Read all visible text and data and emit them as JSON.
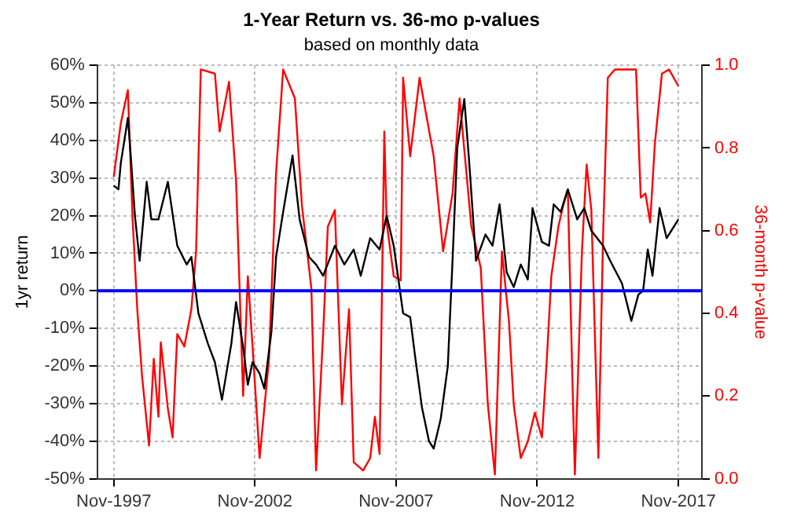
{
  "chart_data": {
    "type": "line",
    "title": "1-Year Return vs. 36-mo p-values",
    "subtitle": "based on monthly data",
    "ylabel": "1yr return",
    "y2label": "36-month p-value",
    "xlim": [
      "1997-04",
      "2018-09"
    ],
    "xticks": [
      {
        "value": "1997-11",
        "label": "Nov-1997"
      },
      {
        "value": "2002-11",
        "label": "Nov-2002"
      },
      {
        "value": "2007-11",
        "label": "Nov-2007"
      },
      {
        "value": "2012-11",
        "label": "Nov-2012"
      },
      {
        "value": "2017-11",
        "label": "Nov-2017"
      }
    ],
    "ylim": [
      -50,
      60
    ],
    "yticks": [
      {
        "value": -50,
        "label": "-50%"
      },
      {
        "value": -40,
        "label": "-40%"
      },
      {
        "value": -30,
        "label": "-30%"
      },
      {
        "value": -20,
        "label": "-20%"
      },
      {
        "value": -10,
        "label": "-10%"
      },
      {
        "value": 0,
        "label": "0%"
      },
      {
        "value": 10,
        "label": "10%"
      },
      {
        "value": 20,
        "label": "20%"
      },
      {
        "value": 30,
        "label": "30%"
      },
      {
        "value": 40,
        "label": "40%"
      },
      {
        "value": 50,
        "label": "50%"
      },
      {
        "value": 60,
        "label": "60%"
      }
    ],
    "y2lim": [
      0,
      1
    ],
    "y2ticks": [
      {
        "value": 0,
        "label": "0.0"
      },
      0.2,
      0.4,
      0.6,
      0.8,
      {
        "value": 1,
        "label": "1.0"
      }
    ],
    "grid": true,
    "legend": false,
    "marker": "none",
    "line_style": "solid",
    "ref_lines": [
      {
        "axis": "y",
        "value": 0,
        "label": null,
        "color": "#0000ff"
      }
    ],
    "series": [
      {
        "color": "#000000",
        "x": [
          "1997-11",
          "1998-01",
          "1998-02",
          "1998-05",
          "1998-06",
          "1998-08",
          "1998-10",
          "1999-01",
          "1999-03",
          "1999-06",
          "1999-10",
          "2000-02",
          "2000-06",
          "2000-08",
          "2000-11",
          "2001-03",
          "2001-06",
          "2001-09",
          "2002-01",
          "2002-03",
          "2002-06",
          "2002-08",
          "2002-10",
          "2003-01",
          "2003-03",
          "2003-06",
          "2003-08",
          "2003-11",
          "2004-03",
          "2004-06",
          "2004-10",
          "2005-01",
          "2005-04",
          "2005-09",
          "2006-01",
          "2006-05",
          "2006-08",
          "2006-12",
          "2007-04",
          "2007-07",
          "2007-10",
          "2008-02",
          "2008-05",
          "2008-07",
          "2008-10",
          "2009-01",
          "2009-03",
          "2009-06",
          "2009-09",
          "2009-11",
          "2010-01",
          "2010-04",
          "2010-06",
          "2010-09",
          "2011-01",
          "2011-04",
          "2011-07",
          "2011-10",
          "2012-01",
          "2012-04",
          "2012-07",
          "2012-09",
          "2013-01",
          "2013-04",
          "2013-06",
          "2013-09",
          "2013-12",
          "2014-04",
          "2014-07",
          "2014-10",
          "2015-03",
          "2015-06",
          "2015-11",
          "2016-03",
          "2016-06",
          "2016-08",
          "2016-10",
          "2016-12",
          "2017-03",
          "2017-06",
          "2017-08",
          "2017-11"
        ],
        "values": [
          28,
          27,
          34,
          46,
          38,
          20,
          8,
          29,
          19,
          19,
          29,
          12,
          7,
          9,
          -6,
          -14,
          -19,
          -29,
          -14,
          -3,
          -15,
          -25,
          -19,
          -22,
          -26,
          -11,
          9,
          21,
          36,
          19,
          9,
          7,
          4,
          12,
          7,
          11,
          4,
          14,
          11,
          20,
          12,
          -6,
          -7,
          -17,
          -31,
          -40,
          -42,
          -34,
          -20,
          8,
          38,
          51,
          35,
          8,
          15,
          12,
          23,
          5,
          1,
          7,
          3,
          22,
          13,
          12,
          23,
          21,
          27,
          19,
          22,
          16,
          12,
          8,
          2,
          -8,
          -1,
          0,
          11,
          4,
          22,
          14,
          16,
          19
        ]
      },
      {
        "color": "#ff0000",
        "axis": "y2",
        "x": [
          "1997-11",
          "1998-02",
          "1998-05",
          "1998-07",
          "1998-09",
          "1998-11",
          "1999-02",
          "1999-04",
          "1999-06",
          "1999-07",
          "1999-10",
          "1999-12",
          "2000-02",
          "2000-05",
          "2000-08",
          "2000-10",
          "2000-12",
          "2001-06",
          "2001-08",
          "2001-12",
          "2002-03",
          "2002-06",
          "2002-08",
          "2002-10",
          "2003-01",
          "2003-05",
          "2003-08",
          "2003-11",
          "2004-04",
          "2004-07",
          "2004-11",
          "2005-01",
          "2005-04",
          "2005-06",
          "2005-09",
          "2005-12",
          "2006-03",
          "2006-05",
          "2006-09",
          "2006-12",
          "2007-02",
          "2007-04",
          "2007-06",
          "2007-07",
          "2007-10",
          "2008-01",
          "2008-02",
          "2008-05",
          "2008-09",
          "2009-03",
          "2009-07",
          "2009-11",
          "2010-02",
          "2010-07",
          "2010-11",
          "2011-02",
          "2011-05",
          "2011-08",
          "2011-11",
          "2012-01",
          "2012-04",
          "2012-07",
          "2012-10",
          "2013-01",
          "2013-03",
          "2013-05",
          "2013-08",
          "2013-10",
          "2013-12",
          "2014-02",
          "2014-03",
          "2014-06",
          "2014-08",
          "2014-10",
          "2015-01",
          "2015-03",
          "2015-05",
          "2015-08",
          "2016-05",
          "2016-07",
          "2016-09",
          "2016-11",
          "2017-01",
          "2017-04",
          "2017-07",
          "2017-11"
        ],
        "values": [
          0.73,
          0.86,
          0.94,
          0.63,
          0.41,
          0.25,
          0.08,
          0.29,
          0.15,
          0.33,
          0.17,
          0.1,
          0.35,
          0.32,
          0.41,
          0.55,
          0.99,
          0.98,
          0.84,
          0.96,
          0.72,
          0.2,
          0.49,
          0.32,
          0.05,
          0.29,
          0.74,
          0.99,
          0.92,
          0.66,
          0.46,
          0.02,
          0.35,
          0.61,
          0.65,
          0.18,
          0.41,
          0.04,
          0.02,
          0.05,
          0.15,
          0.06,
          0.84,
          0.62,
          0.49,
          0.48,
          0.97,
          0.78,
          0.97,
          0.78,
          0.55,
          0.69,
          0.92,
          0.61,
          0.51,
          0.18,
          0.01,
          0.55,
          0.38,
          0.18,
          0.05,
          0.09,
          0.16,
          0.1,
          0.28,
          0.49,
          0.61,
          0.66,
          0.7,
          0.23,
          0.01,
          0.55,
          0.76,
          0.65,
          0.05,
          0.59,
          0.97,
          0.99,
          0.99,
          0.68,
          0.69,
          0.62,
          0.81,
          0.98,
          0.99,
          0.95
        ]
      }
    ]
  }
}
